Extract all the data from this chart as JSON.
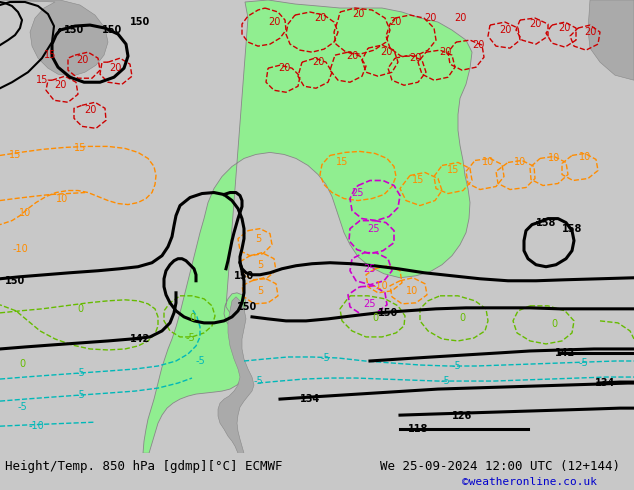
{
  "title_left": "Height/Temp. 850 hPa [gdmp][°C] ECMWF",
  "title_right": "We 25-09-2024 12:00 UTC (12+144)",
  "copyright": "©weatheronline.co.uk",
  "bg_color": "#c8c8c8",
  "sa_color": "#90ee90",
  "font_size_bottom": 9,
  "fig_width": 6.34,
  "fig_height": 4.9,
  "dpi": 100,
  "red": "#cc0000",
  "orange": "#ff8c00",
  "cyan": "#00b8b8",
  "green_c": "#66bb00",
  "magenta": "#cc00cc",
  "black": "#000000",
  "gray_land": "#aaaaaa"
}
